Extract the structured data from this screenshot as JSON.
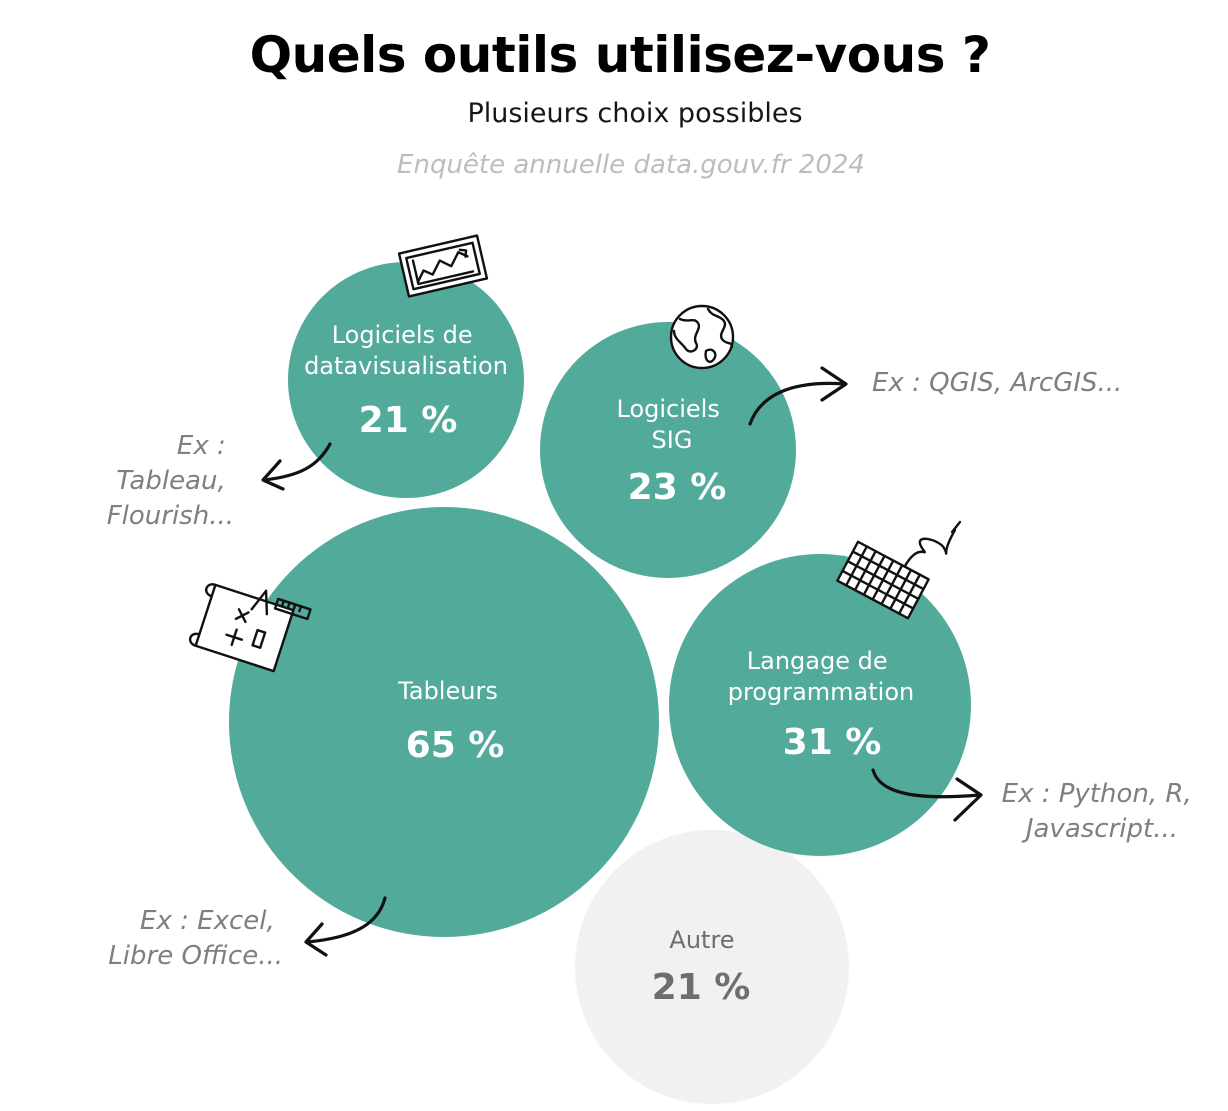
{
  "header": {
    "title": "Quels outils utilisez-vous ?",
    "subtitle": "Plusieurs choix possibles",
    "source": "Enquête annuelle data.gouv.fr 2024"
  },
  "colors": {
    "bubble": "#52aa9b",
    "other_bubble": "#f1f1f1",
    "other_text": "#6e6e6e",
    "note_text": "#7f7f7f",
    "source_text": "#bdbdbd"
  },
  "chart_data": {
    "type": "bubble",
    "title": "Quels outils utilisez-vous ?",
    "subtitle": "Plusieurs choix possibles",
    "source": "Enquête annuelle data.gouv.fr 2024",
    "series": [
      {
        "label_lines": [
          "Logiciels de",
          "datavisualisation"
        ],
        "value": 21,
        "value_label": "21 %",
        "icon": "chart-icon",
        "example_lines": [
          "Ex :",
          "Tableau,",
          "Flourish..."
        ]
      },
      {
        "label_lines": [
          "Logiciels",
          "SIG"
        ],
        "value": 23,
        "value_label": "23 %",
        "icon": "globe-icon",
        "example_lines": [
          "Ex : QGIS, ArcGIS..."
        ]
      },
      {
        "label_lines": [
          "Tableurs"
        ],
        "value": 65,
        "value_label": "65 %",
        "icon": "blueprint-icon",
        "example_lines": [
          "Ex : Excel,",
          "Libre Office..."
        ]
      },
      {
        "label_lines": [
          "Langage de",
          "programmation"
        ],
        "value": 31,
        "value_label": "31 %",
        "icon": "keyboard-icon",
        "example_lines": [
          "Ex : Python, R,",
          "Javascript..."
        ]
      },
      {
        "label_lines": [
          "Autre"
        ],
        "value": 21,
        "value_label": "21 %",
        "icon": "",
        "example_lines": []
      }
    ]
  }
}
